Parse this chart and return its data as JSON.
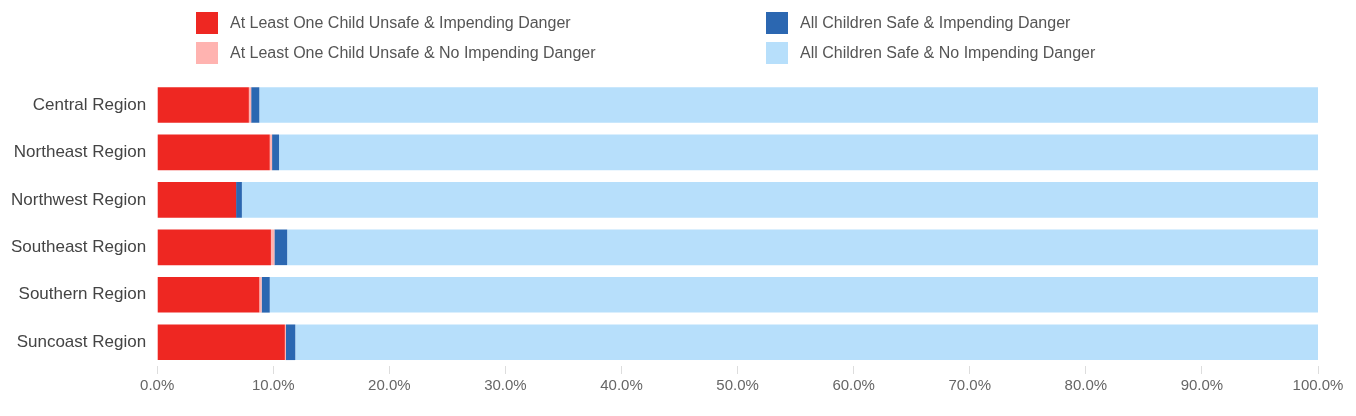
{
  "chart_data": {
    "type": "bar",
    "orientation": "horizontal",
    "stacked": true,
    "legend": "top",
    "grid": false,
    "categories": [
      "Central Region",
      "Northeast Region",
      "Northwest Region",
      "Southeast Region",
      "Southern Region",
      "Suncoast Region"
    ],
    "series": [
      {
        "name": "At Least One Child Unsafe & Impending Danger",
        "color": "#ee2722",
        "values": [
          7.9,
          9.7,
          6.8,
          9.8,
          8.8,
          11.0
        ]
      },
      {
        "name": "At Least One Child Unsafe & No Impending Danger",
        "color": "#ffb3b0",
        "values": [
          0.2,
          0.2,
          0,
          0.3,
          0.2,
          0.1
        ]
      },
      {
        "name": "All Children Safe & Impending Danger",
        "color": "#2b67b1",
        "values": [
          0.7,
          0.6,
          0.5,
          1.1,
          0.7,
          0.8
        ]
      },
      {
        "name": "All Children Safe & No Impending Danger",
        "color": "#b7dffb",
        "values": [
          91.2,
          89.6,
          92.7,
          88.8,
          90.3,
          88.1
        ]
      }
    ],
    "xlim": [
      0,
      100
    ],
    "xticks": [
      {
        "value": 0,
        "label": "0.0%"
      },
      {
        "value": 10,
        "label": "10.0%"
      },
      {
        "value": 20,
        "label": "20.0%"
      },
      {
        "value": 30,
        "label": "30.0%"
      },
      {
        "value": 40,
        "label": "40.0%"
      },
      {
        "value": 50,
        "label": "50.0%"
      },
      {
        "value": 60,
        "label": "60.0%"
      },
      {
        "value": 70,
        "label": "70.0%"
      },
      {
        "value": 80,
        "label": "80.0%"
      },
      {
        "value": 90,
        "label": "90.0%"
      },
      {
        "value": 100,
        "label": "100.0%"
      }
    ]
  }
}
